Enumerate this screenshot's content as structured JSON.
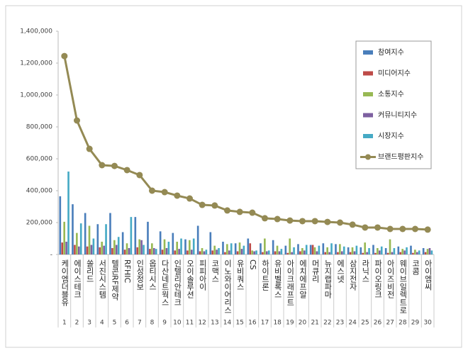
{
  "chart_data": {
    "type": "bar-line",
    "categories": [
      "케이엠더블유",
      "에이스테크",
      "쏠리드",
      "서진시스템",
      "텔콘RF제약",
      "RFHIC",
      "인성정보",
      "옵티시스",
      "다산네트웍스",
      "인텔리안테크",
      "오이솔루션",
      "피피아이",
      "코맥스",
      "이노와이어리스",
      "유비쿼스",
      "CS",
      "하이트론",
      "유비벨록스",
      "아이크래프트",
      "에치에프알",
      "머큐리",
      "뉴지랩파마",
      "에스넷",
      "삼지전자",
      "라닉스",
      "파이오링크",
      "아이즈비전",
      "웨이브일렉트로",
      "코콤",
      "아이엠씨"
    ],
    "category_numbers": [
      1,
      2,
      3,
      4,
      5,
      6,
      7,
      8,
      9,
      10,
      11,
      12,
      13,
      14,
      15,
      16,
      17,
      18,
      19,
      20,
      21,
      22,
      23,
      24,
      25,
      26,
      27,
      28,
      29,
      30
    ],
    "series": [
      {
        "name": "참여지수",
        "color": "#4a7ebb",
        "values": [
          365000,
          315000,
          260000,
          190000,
          260000,
          140000,
          235000,
          205000,
          145000,
          135000,
          95000,
          180000,
          140000,
          80000,
          70000,
          100000,
          70000,
          90000,
          55000,
          65000,
          60000,
          70000,
          65000,
          45000,
          45000,
          60000,
          40000,
          50000,
          55000,
          40000
        ]
      },
      {
        "name": "미디어지수",
        "color": "#be4b48",
        "values": [
          75000,
          60000,
          50000,
          45000,
          40000,
          30000,
          45000,
          35000,
          30000,
          25000,
          25000,
          20000,
          25000,
          15000,
          20000,
          70000,
          15000,
          20000,
          10000,
          20000,
          60000,
          15000,
          15000,
          15000,
          10000,
          10000,
          10000,
          15000,
          10000,
          15000
        ]
      },
      {
        "name": "소통지수",
        "color": "#98b954",
        "values": [
          205000,
          135000,
          180000,
          80000,
          90000,
          70000,
          95000,
          70000,
          95000,
          80000,
          90000,
          40000,
          55000,
          65000,
          75000,
          25000,
          100000,
          55000,
          100000,
          40000,
          45000,
          45000,
          65000,
          45000,
          75000,
          40000,
          95000,
          35000,
          30000,
          35000
        ]
      },
      {
        "name": "커뮤니티지수",
        "color": "#7d60a0",
        "values": [
          80000,
          50000,
          60000,
          55000,
          60000,
          40000,
          90000,
          40000,
          40000,
          35000,
          30000,
          20000,
          30000,
          25000,
          35000,
          20000,
          20000,
          20000,
          15000,
          25000,
          20000,
          15000,
          20000,
          20000,
          15000,
          25000,
          15000,
          25000,
          15000,
          40000
        ]
      },
      {
        "name": "시장지수",
        "color": "#46aac5",
        "values": [
          520000,
          195000,
          100000,
          190000,
          110000,
          235000,
          60000,
          35000,
          80000,
          100000,
          100000,
          30000,
          40000,
          70000,
          55000,
          25000,
          25000,
          35000,
          45000,
          60000,
          55000,
          70000,
          50000,
          55000,
          40000,
          50000,
          40000,
          45000,
          25000,
          25000
        ]
      },
      {
        "name": "브랜드평판지수",
        "color": "#948a54",
        "line": true,
        "values": [
          1244000,
          840000,
          662000,
          560000,
          555000,
          529000,
          498000,
          400000,
          391000,
          369000,
          351000,
          311000,
          307000,
          276000,
          267000,
          262000,
          227000,
          222000,
          213000,
          209000,
          209000,
          204000,
          200000,
          187000,
          169000,
          169000,
          160000,
          160000,
          160000,
          156000
        ]
      }
    ],
    "ylim": [
      0,
      1400000
    ],
    "yticks": [
      {
        "value": 0,
        "label": "-"
      },
      {
        "value": 200000,
        "label": "200,000"
      },
      {
        "value": 400000,
        "label": "400,000"
      },
      {
        "value": 600000,
        "label": "600,000"
      },
      {
        "value": 800000,
        "label": "800,000"
      },
      {
        "value": 1000000,
        "label": "1,000,000"
      },
      {
        "value": 1200000,
        "label": "1,200,000"
      },
      {
        "value": 1400000,
        "label": "1,400,000"
      }
    ],
    "legend": "right"
  }
}
